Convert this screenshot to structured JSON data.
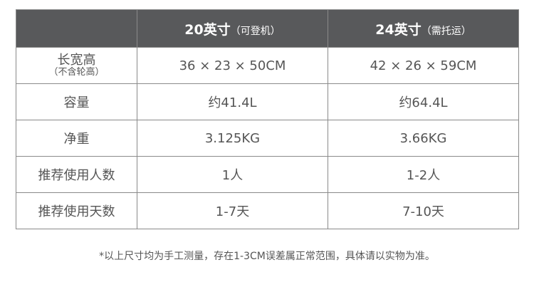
{
  "table": {
    "header": [
      {
        "main": "20英寸",
        "sub": "（可登机）"
      },
      {
        "main": "24英寸",
        "sub": "（需托运）"
      }
    ],
    "rows": [
      {
        "label": "长宽高",
        "label_note": "（不含轮高）",
        "values": [
          "36 × 23 × 50CM",
          "42 × 26 × 59CM"
        ]
      },
      {
        "label": "容量",
        "values": [
          "约41.4L",
          "约64.4L"
        ]
      },
      {
        "label": "净重",
        "values": [
          "3.125KG",
          "3.66KG"
        ]
      },
      {
        "label": "推荐使用人数",
        "values": [
          "1人",
          "1-2人"
        ]
      },
      {
        "label": "推荐使用天数",
        "values": [
          "1-7天",
          "7-10天"
        ]
      }
    ]
  },
  "footnote": "*以上尺寸均为手工测量，存在1-3CM误差属正常范围，具体请以实物为准。"
}
